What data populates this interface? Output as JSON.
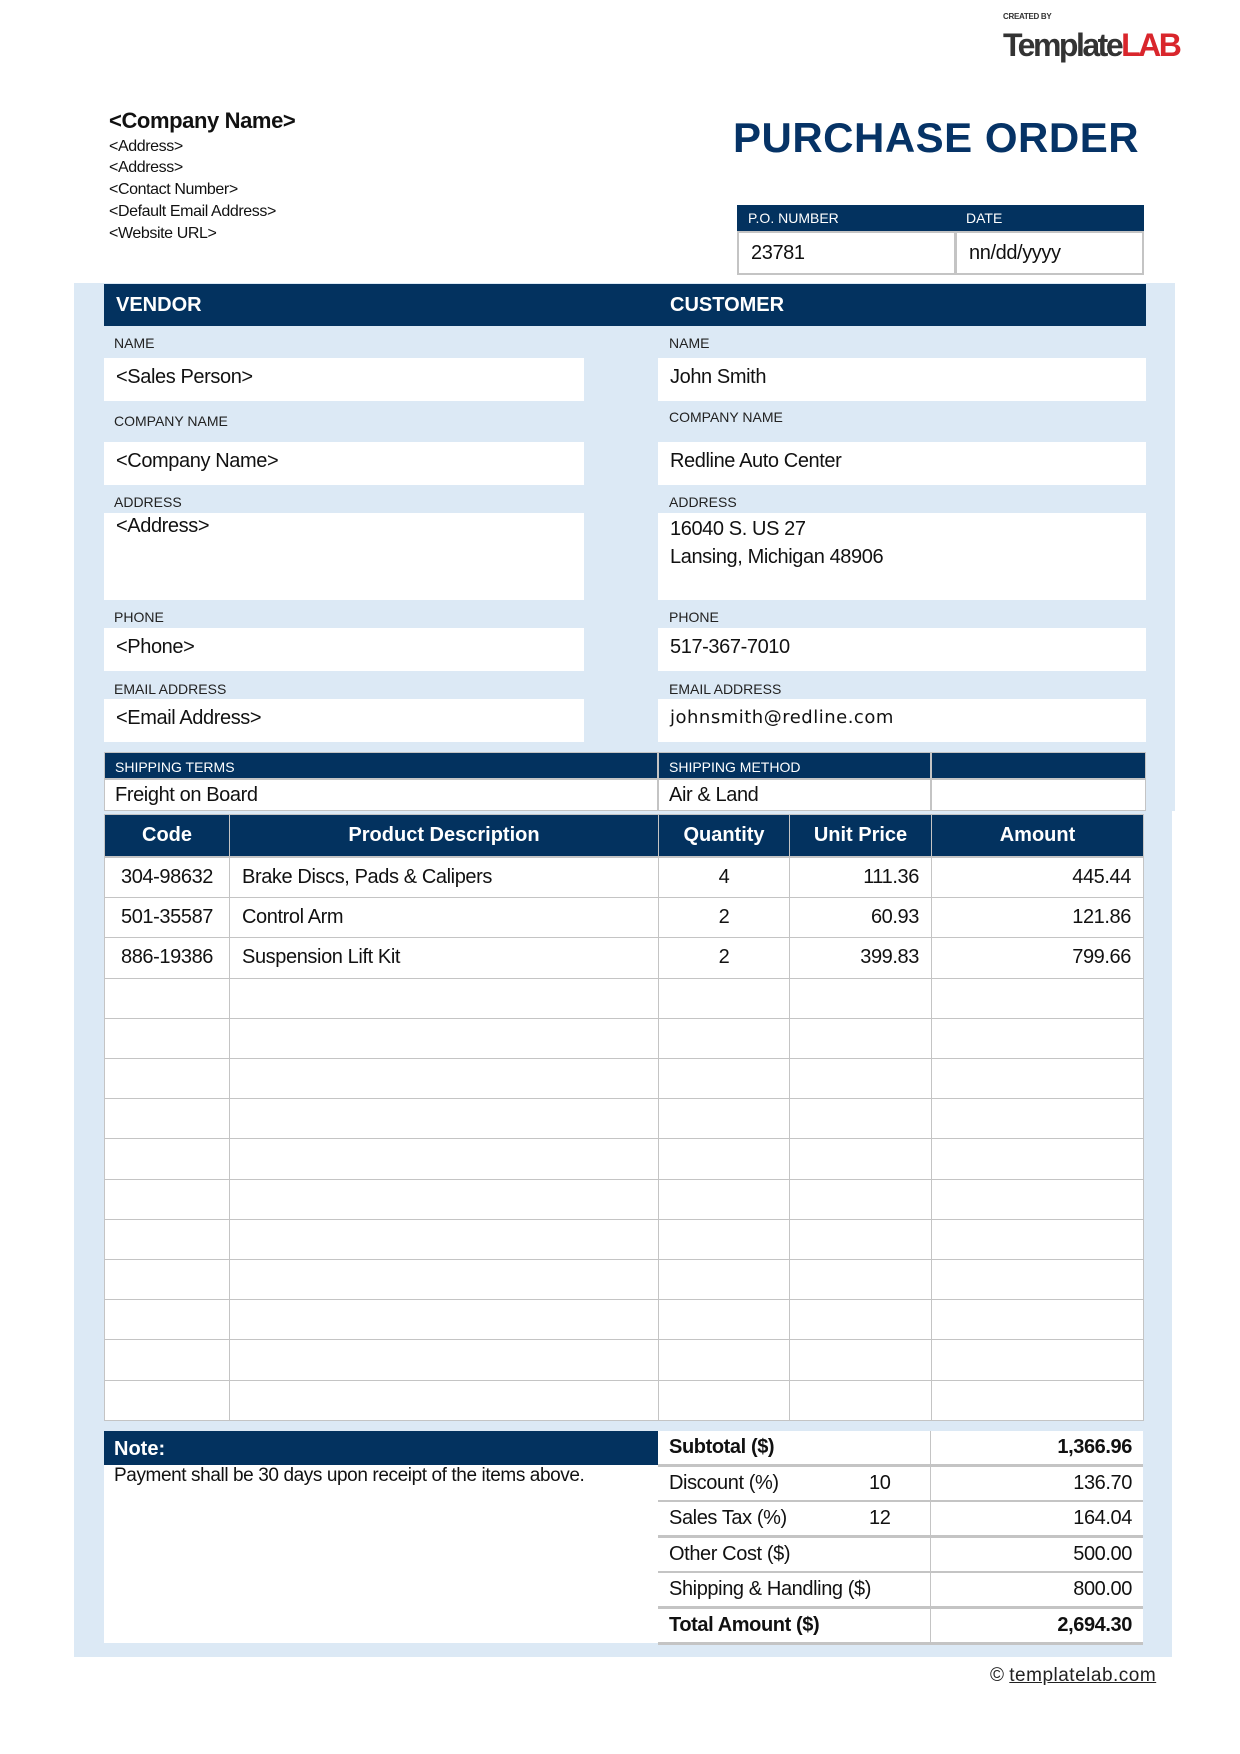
{
  "logo": {
    "created_by": "CREATED BY",
    "brand_a": "Template",
    "brand_b": "LAB"
  },
  "company": {
    "name": "<Company Name>",
    "lines": [
      "<Address>",
      "<Address>",
      "<Contact Number>",
      "<Default Email Address>",
      "<Website URL>"
    ]
  },
  "title": "PURCHASE ORDER",
  "po": {
    "number_label": "P.O. NUMBER",
    "date_label": "DATE",
    "number": "23781",
    "date": "nn/dd/yyyy"
  },
  "vendor": {
    "heading": "VENDOR",
    "name_label": "NAME",
    "name": "<Sales Person>",
    "company_label": "COMPANY NAME",
    "company": "<Company Name>",
    "address_label": "ADDRESS",
    "address": "<Address>",
    "phone_label": "PHONE",
    "phone": "<Phone>",
    "email_label": "EMAIL ADDRESS",
    "email": "<Email Address>"
  },
  "customer": {
    "heading": "CUSTOMER",
    "name_label": "NAME",
    "name": "John Smith",
    "company_label": "COMPANY NAME",
    "company": "Redline Auto Center",
    "address_label": "ADDRESS",
    "address_line1": "16040 S. US 27",
    "address_line2": "Lansing, Michigan 48906",
    "phone_label": "PHONE",
    "phone": "517-367-7010",
    "email_label": "EMAIL ADDRESS",
    "email": "johnsmith@redline.com"
  },
  "shipping": {
    "terms_label": "SHIPPING TERMS",
    "terms": "Freight on Board",
    "method_label": "SHIPPING METHOD",
    "method": "Air & Land"
  },
  "table": {
    "headers": [
      "Code",
      "Product Description",
      "Quantity",
      "Unit Price",
      "Amount"
    ],
    "rows": [
      [
        "304-98632",
        "Brake Discs, Pads & Calipers",
        "4",
        "111.36",
        "445.44"
      ],
      [
        "501-35587",
        "Control Arm",
        "2",
        "60.93",
        "121.86"
      ],
      [
        "886-19386",
        "Suspension Lift Kit",
        "2",
        "399.83",
        "799.66"
      ]
    ]
  },
  "note": {
    "label": "Note:",
    "text": "Payment shall be 30 days upon receipt of the items above."
  },
  "totals": [
    {
      "label": "Subtotal ($)",
      "rate": "",
      "value": "1,366.96",
      "bold": true
    },
    {
      "label": "Discount (%)",
      "rate": "10",
      "value": "136.70"
    },
    {
      "label": "Sales Tax (%)",
      "rate": "12",
      "value": "164.04"
    },
    {
      "label": "Other Cost ($)",
      "rate": "",
      "value": "500.00"
    },
    {
      "label": "Shipping & Handling ($)",
      "rate": "",
      "value": "800.00"
    },
    {
      "label": "Total Amount ($)",
      "rate": "",
      "value": "2,694.30",
      "bold": true
    }
  ],
  "footer": {
    "copyright_symbol": "©",
    "link": "templatelab.com"
  },
  "colors": {
    "navy": "#03325f",
    "panel": "#dce9f5",
    "brand_red": "#d9262c"
  }
}
